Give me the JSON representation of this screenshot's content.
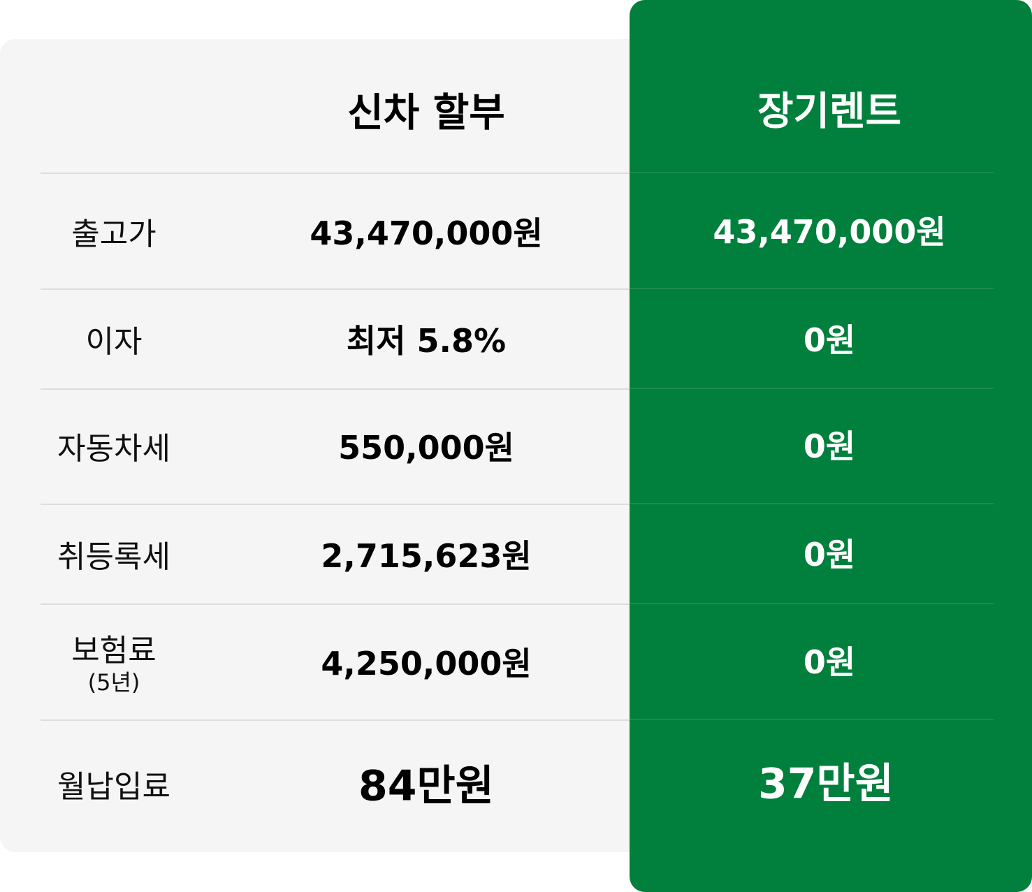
{
  "colors": {
    "accent": "#00803c",
    "panel": "#f5f5f5"
  },
  "headers": {
    "installment": "신차 할부",
    "rental": "장기렌트"
  },
  "rows": [
    {
      "label": "출고가",
      "installment": "43,470,000원",
      "rental": "43,470,000원"
    },
    {
      "label": "이자",
      "installment": "최저 5.8%",
      "rental": "0원"
    },
    {
      "label": "자동차세",
      "installment": "550,000원",
      "rental": "0원"
    },
    {
      "label": "취등록세",
      "installment": "2,715,623원",
      "rental": "0원"
    },
    {
      "label": "보험료",
      "sublabel": "(5년)",
      "installment": "4,250,000원",
      "rental": "0원"
    },
    {
      "label": "월납입료",
      "installment": "84만원",
      "rental": "37만원"
    }
  ]
}
